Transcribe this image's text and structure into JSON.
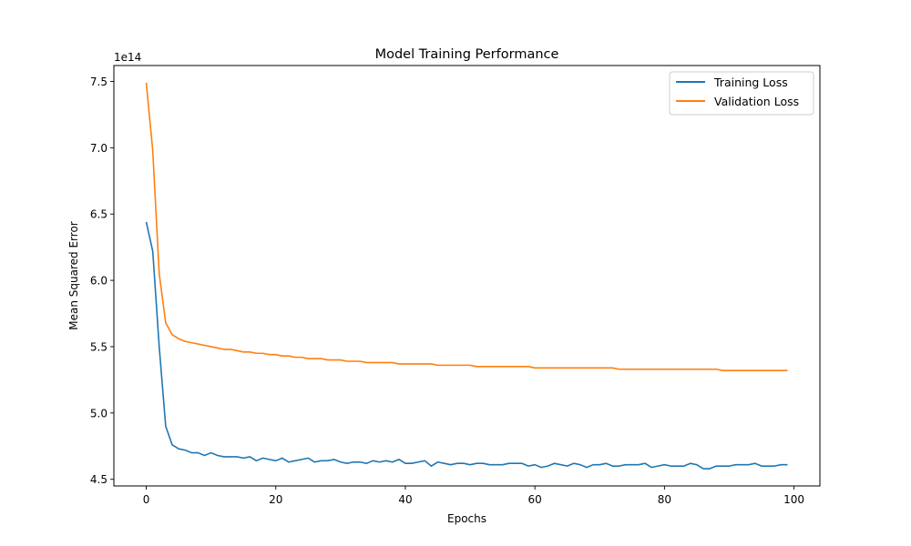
{
  "chart_data": {
    "type": "line",
    "title": "Model Training Performance",
    "xlabel": "Epochs",
    "ylabel": "Mean Squared Error",
    "y_offset_label": "1e14",
    "xlim": [
      -5,
      104
    ],
    "ylim": [
      4.45,
      7.62
    ],
    "x_ticks": [
      0,
      20,
      40,
      60,
      80,
      100
    ],
    "x_tick_labels": [
      "0",
      "20",
      "40",
      "60",
      "80",
      "100"
    ],
    "y_ticks": [
      4.5,
      5.0,
      5.5,
      6.0,
      6.5,
      7.0,
      7.5
    ],
    "y_tick_labels": [
      "4.5",
      "5.0",
      "5.5",
      "6.0",
      "6.5",
      "7.0",
      "7.5"
    ],
    "grid": false,
    "legend_position": "top-right",
    "x": [
      0,
      1,
      2,
      3,
      4,
      5,
      6,
      7,
      8,
      9,
      10,
      11,
      12,
      13,
      14,
      15,
      16,
      17,
      18,
      19,
      20,
      21,
      22,
      23,
      24,
      25,
      26,
      27,
      28,
      29,
      30,
      31,
      32,
      33,
      34,
      35,
      36,
      37,
      38,
      39,
      40,
      41,
      42,
      43,
      44,
      45,
      46,
      47,
      48,
      49,
      50,
      51,
      52,
      53,
      54,
      55,
      56,
      57,
      58,
      59,
      60,
      61,
      62,
      63,
      64,
      65,
      66,
      67,
      68,
      69,
      70,
      71,
      72,
      73,
      74,
      75,
      76,
      77,
      78,
      79,
      80,
      81,
      82,
      83,
      84,
      85,
      86,
      87,
      88,
      89,
      90,
      91,
      92,
      93,
      94,
      95,
      96,
      97,
      98,
      99
    ],
    "series": [
      {
        "name": "Training Loss",
        "color": "#1f77b4",
        "values": [
          6.44,
          6.22,
          5.5,
          4.9,
          4.76,
          4.73,
          4.72,
          4.7,
          4.7,
          4.68,
          4.7,
          4.68,
          4.67,
          4.67,
          4.67,
          4.66,
          4.67,
          4.64,
          4.66,
          4.65,
          4.64,
          4.66,
          4.63,
          4.64,
          4.65,
          4.66,
          4.63,
          4.64,
          4.64,
          4.65,
          4.63,
          4.62,
          4.63,
          4.63,
          4.62,
          4.64,
          4.63,
          4.64,
          4.63,
          4.65,
          4.62,
          4.62,
          4.63,
          4.64,
          4.6,
          4.63,
          4.62,
          4.61,
          4.62,
          4.62,
          4.61,
          4.62,
          4.62,
          4.61,
          4.61,
          4.61,
          4.62,
          4.62,
          4.62,
          4.6,
          4.61,
          4.59,
          4.6,
          4.62,
          4.61,
          4.6,
          4.62,
          4.61,
          4.59,
          4.61,
          4.61,
          4.62,
          4.6,
          4.6,
          4.61,
          4.61,
          4.61,
          4.62,
          4.59,
          4.6,
          4.61,
          4.6,
          4.6,
          4.6,
          4.62,
          4.61,
          4.58,
          4.58,
          4.6,
          4.6,
          4.6,
          4.61,
          4.61,
          4.61,
          4.62,
          4.6,
          4.6,
          4.6,
          4.61,
          4.61
        ]
      },
      {
        "name": "Validation Loss",
        "color": "#ff7f0e",
        "values": [
          7.49,
          6.98,
          6.05,
          5.68,
          5.59,
          5.56,
          5.54,
          5.53,
          5.52,
          5.51,
          5.5,
          5.49,
          5.48,
          5.48,
          5.47,
          5.46,
          5.46,
          5.45,
          5.45,
          5.44,
          5.44,
          5.43,
          5.43,
          5.42,
          5.42,
          5.41,
          5.41,
          5.41,
          5.4,
          5.4,
          5.4,
          5.39,
          5.39,
          5.39,
          5.38,
          5.38,
          5.38,
          5.38,
          5.38,
          5.37,
          5.37,
          5.37,
          5.37,
          5.37,
          5.37,
          5.36,
          5.36,
          5.36,
          5.36,
          5.36,
          5.36,
          5.35,
          5.35,
          5.35,
          5.35,
          5.35,
          5.35,
          5.35,
          5.35,
          5.35,
          5.34,
          5.34,
          5.34,
          5.34,
          5.34,
          5.34,
          5.34,
          5.34,
          5.34,
          5.34,
          5.34,
          5.34,
          5.34,
          5.33,
          5.33,
          5.33,
          5.33,
          5.33,
          5.33,
          5.33,
          5.33,
          5.33,
          5.33,
          5.33,
          5.33,
          5.33,
          5.33,
          5.33,
          5.33,
          5.32,
          5.32,
          5.32,
          5.32,
          5.32,
          5.32,
          5.32,
          5.32,
          5.32,
          5.32,
          5.32
        ]
      }
    ]
  }
}
